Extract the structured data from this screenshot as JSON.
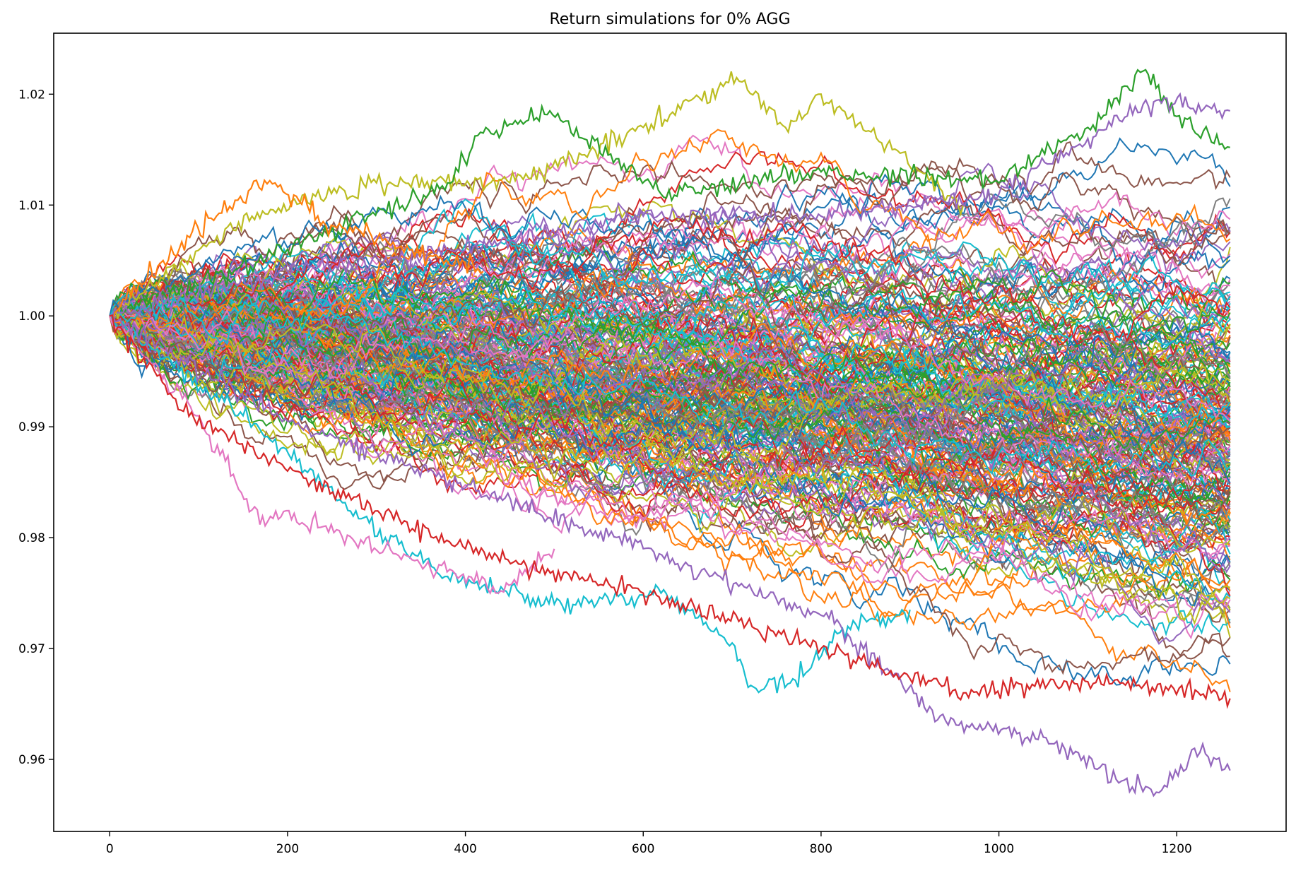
{
  "chart_data": {
    "type": "line",
    "title": "Return simulations for 0% AGG",
    "xlabel": "",
    "ylabel": "",
    "xlim": [
      -63,
      1323
    ],
    "ylim": [
      0.9535,
      1.0255
    ],
    "x_ticks": [
      0,
      200,
      400,
      600,
      800,
      1000,
      1200
    ],
    "y_ticks": [
      0.96,
      0.97,
      0.98,
      0.99,
      1.0,
      1.01,
      1.02
    ],
    "y_tick_labels": [
      "0.96",
      "0.97",
      "0.98",
      "0.99",
      "1.00",
      "1.01",
      "1.02"
    ],
    "legend": "none",
    "grid": false,
    "n_steps": 1260,
    "start_value": 1.0,
    "series_count": 250,
    "series_color_cycle": [
      "#1f77b4",
      "#ff7f0e",
      "#2ca02c",
      "#d62728",
      "#9467bd",
      "#8c564b",
      "#e377c2",
      "#7f7f7f",
      "#bcbd22",
      "#17becf"
    ],
    "highlighted_series": [
      {
        "color": "#bcbd22",
        "points": [
          [
            0,
            1.0
          ],
          [
            160,
            1.009
          ],
          [
            300,
            1.012
          ],
          [
            450,
            1.012
          ],
          [
            600,
            1.017
          ],
          [
            705,
            1.0215
          ],
          [
            760,
            1.017
          ],
          [
            800,
            1.02
          ],
          [
            880,
            1.015
          ],
          [
            960,
            1.01
          ]
        ]
      },
      {
        "color": "#2ca02c",
        "points": [
          [
            0,
            1.0
          ],
          [
            200,
            1.006
          ],
          [
            380,
            1.012
          ],
          [
            420,
            1.0165
          ],
          [
            495,
            1.0185
          ],
          [
            620,
            1.011
          ],
          [
            800,
            1.013
          ],
          [
            1000,
            1.012
          ],
          [
            1100,
            1.017
          ],
          [
            1165,
            1.0222
          ],
          [
            1200,
            1.018
          ],
          [
            1260,
            1.0152
          ]
        ]
      },
      {
        "color": "#9467bd",
        "points": [
          [
            0,
            1.0
          ],
          [
            200,
            1.004
          ],
          [
            400,
            1.006
          ],
          [
            600,
            1.009
          ],
          [
            800,
            1.009
          ],
          [
            1000,
            1.011
          ],
          [
            1100,
            1.016
          ],
          [
            1180,
            1.0195
          ],
          [
            1260,
            1.0185
          ]
        ]
      },
      {
        "color": "#ff7f0e",
        "points": [
          [
            0,
            1.0
          ],
          [
            60,
            1.005
          ],
          [
            120,
            1.009
          ],
          [
            180,
            1.0122
          ],
          [
            240,
            1.0085
          ],
          [
            340,
            1.006
          ],
          [
            420,
            1.004
          ]
        ]
      },
      {
        "color": "#17becf",
        "points": [
          [
            0,
            1.0
          ],
          [
            150,
            0.991
          ],
          [
            310,
            0.98
          ],
          [
            380,
            0.9765
          ],
          [
            500,
            0.974
          ],
          [
            620,
            0.975
          ],
          [
            700,
            0.9705
          ],
          [
            718,
            0.9665
          ],
          [
            780,
            0.9675
          ],
          [
            830,
            0.972
          ],
          [
            900,
            0.9735
          ]
        ]
      },
      {
        "color": "#e377c2",
        "points": [
          [
            0,
            1.0
          ],
          [
            100,
            0.991
          ],
          [
            160,
            0.9825
          ],
          [
            240,
            0.981
          ],
          [
            340,
            0.978
          ],
          [
            440,
            0.9752
          ],
          [
            500,
            0.979
          ]
        ]
      },
      {
        "color": "#9467bd",
        "points": [
          [
            0,
            1.0
          ],
          [
            200,
            0.9905
          ],
          [
            400,
            0.9845
          ],
          [
            600,
            0.979
          ],
          [
            800,
            0.973
          ],
          [
            940,
            0.9635
          ],
          [
            1050,
            0.962
          ],
          [
            1150,
            0.9575
          ],
          [
            1180,
            0.957
          ],
          [
            1220,
            0.961
          ],
          [
            1260,
            0.959
          ]
        ]
      },
      {
        "color": "#d62728",
        "points": [
          [
            0,
            1.0
          ],
          [
            80,
            0.9915
          ],
          [
            200,
            0.986
          ],
          [
            400,
            0.979
          ],
          [
            600,
            0.975
          ],
          [
            800,
            0.97
          ],
          [
            960,
            0.966
          ],
          [
            1100,
            0.967
          ],
          [
            1260,
            0.9655
          ]
        ]
      }
    ]
  }
}
